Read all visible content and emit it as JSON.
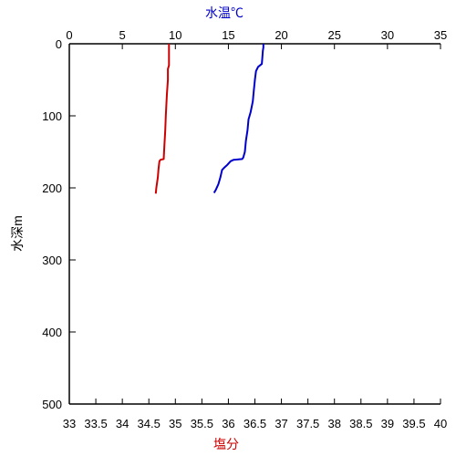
{
  "chart_data": {
    "type": "line",
    "top_axis": {
      "label": "水温℃",
      "label_color": "#0000cc",
      "range": [
        0,
        35
      ],
      "ticks": [
        "0",
        "5",
        "10",
        "15",
        "20",
        "25",
        "30",
        "35"
      ]
    },
    "bottom_axis": {
      "label": "塩分",
      "label_color": "#cc0000",
      "range": [
        33,
        40
      ],
      "ticks": [
        "33",
        "33.5",
        "34",
        "34.5",
        "35",
        "35.5",
        "36",
        "36.5",
        "37",
        "37.5",
        "38",
        "38.5",
        "39",
        "39.5",
        "40"
      ]
    },
    "left_axis": {
      "label": "水深m",
      "range": [
        0,
        500
      ],
      "inverted": true,
      "ticks": [
        "0",
        "100",
        "200",
        "300",
        "400",
        "500"
      ]
    },
    "grid": false,
    "series": [
      {
        "key": "temperature",
        "axis": "top",
        "color": "#0000cc",
        "points": [
          [
            18.3,
            0
          ],
          [
            18.3,
            5
          ],
          [
            18.25,
            10
          ],
          [
            18.2,
            20
          ],
          [
            18.15,
            28
          ],
          [
            17.8,
            32
          ],
          [
            17.6,
            38
          ],
          [
            17.5,
            50
          ],
          [
            17.4,
            65
          ],
          [
            17.3,
            80
          ],
          [
            17.1,
            95
          ],
          [
            16.9,
            105
          ],
          [
            16.8,
            120
          ],
          [
            16.65,
            135
          ],
          [
            16.55,
            150
          ],
          [
            16.4,
            158
          ],
          [
            16.3,
            160
          ],
          [
            15.5,
            161
          ],
          [
            15.2,
            163
          ],
          [
            14.9,
            168
          ],
          [
            14.6,
            172
          ],
          [
            14.4,
            175
          ],
          [
            14.25,
            185
          ],
          [
            14.05,
            195
          ],
          [
            13.8,
            203
          ],
          [
            13.65,
            207
          ]
        ]
      },
      {
        "key": "salinity",
        "axis": "bottom",
        "color": "#cc0000",
        "points": [
          [
            34.88,
            0
          ],
          [
            34.88,
            30
          ],
          [
            34.86,
            35
          ],
          [
            34.86,
            50
          ],
          [
            34.84,
            70
          ],
          [
            34.82,
            100
          ],
          [
            34.81,
            120
          ],
          [
            34.79,
            145
          ],
          [
            34.78,
            160
          ],
          [
            34.72,
            161
          ],
          [
            34.7,
            163
          ],
          [
            34.68,
            175
          ],
          [
            34.67,
            185
          ],
          [
            34.64,
            200
          ],
          [
            34.63,
            208
          ]
        ]
      }
    ]
  }
}
